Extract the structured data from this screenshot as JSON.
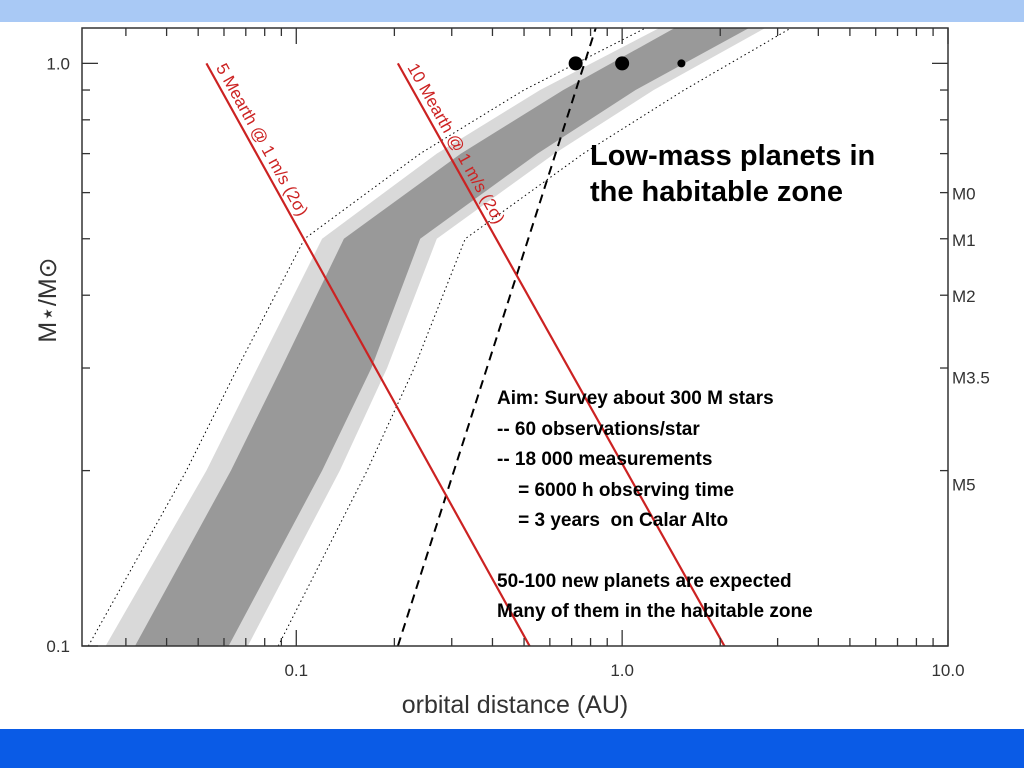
{
  "chart_data": {
    "type": "area",
    "xlabel": "orbital distance (AU)",
    "ylabel": "M⋆/M⊙",
    "x_scale": "log",
    "y_scale": "log",
    "xlim": [
      0.022,
      10.0
    ],
    "ylim": [
      0.1,
      1.15
    ],
    "x_ticks": [
      {
        "value": 0.1,
        "label": "0.1"
      },
      {
        "value": 1.0,
        "label": "1.0"
      },
      {
        "value": 10.0,
        "label": "10.0"
      }
    ],
    "y_ticks": [
      {
        "value": 0.1,
        "label": "0.1"
      },
      {
        "value": 1.0,
        "label": "1.0"
      }
    ],
    "right_axis_labels": [
      {
        "mass": 0.6,
        "label": "M0"
      },
      {
        "mass": 0.5,
        "label": "M1"
      },
      {
        "mass": 0.4,
        "label": "M2"
      },
      {
        "mass": 0.29,
        "label": "M3.5"
      },
      {
        "mass": 0.19,
        "label": "M5"
      }
    ],
    "habitable_zone_inner": {
      "mass": [
        0.1,
        0.2,
        0.3,
        0.5,
        0.7,
        0.9,
        1.15
      ],
      "au_inner": [
        0.032,
        0.063,
        0.09,
        0.14,
        0.32,
        0.66,
        1.45
      ],
      "au_outer": [
        0.062,
        0.12,
        0.17,
        0.24,
        0.55,
        1.1,
        2.45
      ]
    },
    "habitable_zone_outer": {
      "mass": [
        0.1,
        0.2,
        0.3,
        0.5,
        0.7,
        0.9,
        1.15
      ],
      "au_inner": [
        0.026,
        0.053,
        0.076,
        0.12,
        0.27,
        0.56,
        1.3
      ],
      "au_outer": [
        0.071,
        0.136,
        0.19,
        0.27,
        0.62,
        1.25,
        2.75
      ]
    },
    "dotted_boundaries": {
      "mass": [
        0.1,
        0.2,
        0.3,
        0.5,
        0.7,
        0.9,
        1.15
      ],
      "au_inner": [
        0.023,
        0.046,
        0.066,
        0.106,
        0.24,
        0.5,
        1.18
      ],
      "au_outer": [
        0.088,
        0.165,
        0.23,
        0.33,
        0.76,
        1.55,
        3.3
      ]
    },
    "detection_lines": [
      {
        "label": "5 Mearth @ 1 m/s (2σ)",
        "points": [
          [
            0.053,
            1.0
          ],
          [
            0.52,
            0.1
          ]
        ],
        "color": "#cc2222"
      },
      {
        "label": "10 Mearth @ 1 m/s (2σ)",
        "points": [
          [
            0.205,
            1.0
          ],
          [
            2.06,
            0.1
          ]
        ],
        "color": "#cc2222"
      }
    ],
    "tidal_lock_line": {
      "points": [
        [
          0.205,
          0.1
        ],
        [
          0.83,
          1.15
        ]
      ],
      "style": "dashed",
      "color": "#000000"
    },
    "planets": [
      {
        "a": 0.72,
        "mass": 1.0,
        "size": "large"
      },
      {
        "a": 1.0,
        "mass": 1.0,
        "size": "large"
      },
      {
        "a": 1.52,
        "mass": 1.0,
        "size": "small"
      }
    ]
  },
  "callout": {
    "title_line1": "Low-mass planets in",
    "title_line2": "the habitable zone"
  },
  "notes": {
    "line1": "Aim: Survey about 300 M stars",
    "line2": "-- 60 observations/star",
    "line3": "-- 18 000 measurements",
    "line4": "    = 6000 h observing time",
    "line5": "    = 3 years  on Calar Alto",
    "line6": "50-100 new planets are expected",
    "line7": "Many of them in the habitable zone"
  },
  "colors": {
    "top_band": "#a9c9f5",
    "bottom_band": "#0a5be6",
    "hz_outer": "#d9d9d9",
    "hz_inner": "#999999",
    "detection_line": "#cc2222"
  }
}
